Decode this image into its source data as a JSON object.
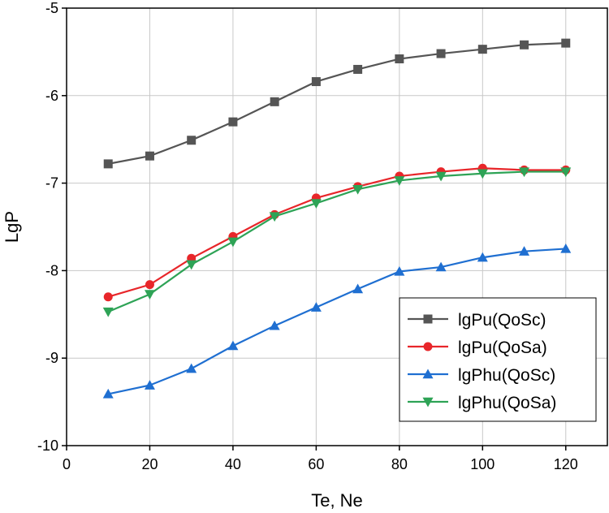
{
  "chart_data": {
    "type": "line",
    "title": "",
    "xlabel": "Te, Ne",
    "ylabel": "LgP",
    "xlim": [
      0,
      130
    ],
    "ylim": [
      -10,
      -5
    ],
    "xticks": [
      0,
      20,
      40,
      60,
      80,
      100,
      120
    ],
    "yticks": [
      -10,
      -9,
      -8,
      -7,
      -6,
      -5
    ],
    "grid": true,
    "legend_position": "bottom-right",
    "x": [
      10,
      20,
      30,
      40,
      50,
      60,
      70,
      80,
      90,
      100,
      110,
      120
    ],
    "series": [
      {
        "name": "lgPu(QoSc)",
        "color": "#555555",
        "marker": "square",
        "values": [
          -6.78,
          -6.69,
          -6.51,
          -6.3,
          -6.07,
          -5.84,
          -5.7,
          -5.58,
          -5.52,
          -5.47,
          -5.42,
          -5.4
        ]
      },
      {
        "name": "lgPu(QoSa)",
        "color": "#e8262a",
        "marker": "circle",
        "values": [
          -8.3,
          -8.16,
          -7.86,
          -7.61,
          -7.36,
          -7.17,
          -7.04,
          -6.92,
          -6.87,
          -6.83,
          -6.85,
          -6.85
        ]
      },
      {
        "name": "lgPhu(QoSc)",
        "color": "#1f6fd1",
        "marker": "triangle-up",
        "values": [
          -9.41,
          -9.31,
          -9.12,
          -8.86,
          -8.63,
          -8.42,
          -8.21,
          -8.01,
          -7.96,
          -7.85,
          -7.78,
          -7.75
        ]
      },
      {
        "name": "lgPhu(QoSa)",
        "color": "#2ea356",
        "marker": "triangle-down",
        "values": [
          -8.47,
          -8.27,
          -7.93,
          -7.67,
          -7.38,
          -7.23,
          -7.07,
          -6.97,
          -6.92,
          -6.89,
          -6.87,
          -6.87
        ]
      }
    ]
  }
}
